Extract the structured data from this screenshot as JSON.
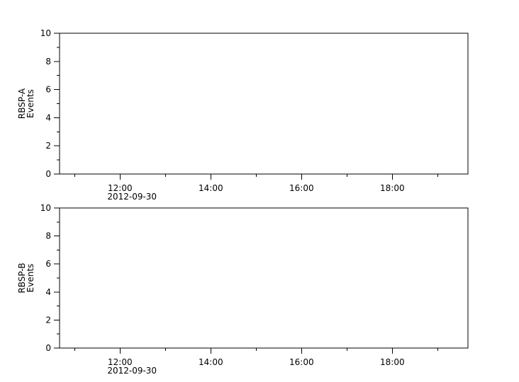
{
  "chart_data": [
    {
      "type": "line",
      "ylabel": [
        "RBSP-A",
        "Events"
      ],
      "ylim": [
        0,
        10
      ],
      "yticks": [
        "0",
        "2",
        "4",
        "6",
        "8",
        "10"
      ],
      "xlim": [
        "2012-09-30 10:40",
        "2012-09-30 19:40"
      ],
      "xticks": [
        "12:00",
        "14:00",
        "16:00",
        "18:00"
      ],
      "xtick_date": "2012-09-30",
      "series": [],
      "grid": false
    },
    {
      "type": "line",
      "ylabel": [
        "RBSP-B",
        "Events"
      ],
      "ylim": [
        0,
        10
      ],
      "yticks": [
        "0",
        "2",
        "4",
        "6",
        "8",
        "10"
      ],
      "xlim": [
        "2012-09-30 10:40",
        "2012-09-30 19:40"
      ],
      "xticks": [
        "12:00",
        "14:00",
        "16:00",
        "18:00"
      ],
      "xtick_date": "2012-09-30",
      "series": [],
      "grid": false
    }
  ],
  "colors": {
    "axis": "#000000",
    "background": "#ffffff"
  }
}
